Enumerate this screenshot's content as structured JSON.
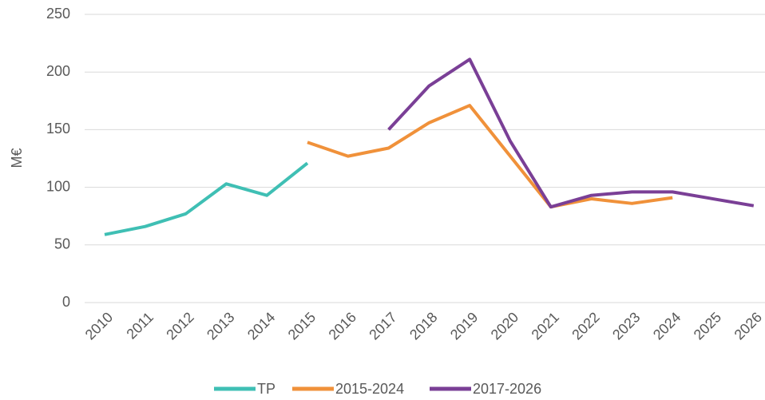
{
  "chart_data": {
    "type": "line",
    "y_label": "M€",
    "categories": [
      "2010",
      "2011",
      "2012",
      "2013",
      "2014",
      "2015",
      "2016",
      "2017",
      "2018",
      "2019",
      "2020",
      "2021",
      "2022",
      "2023",
      "2024",
      "2025",
      "2026"
    ],
    "series": [
      {
        "name": "TP",
        "color": "#3fbfb4",
        "values": [
          59,
          66,
          77,
          103,
          93,
          121,
          null,
          null,
          null,
          null,
          null,
          null,
          null,
          null,
          null,
          null,
          null
        ]
      },
      {
        "name": "2015-2024",
        "color": "#f0913a",
        "values": [
          null,
          null,
          null,
          null,
          null,
          139,
          127,
          134,
          156,
          171,
          127,
          83,
          90,
          86,
          91,
          null,
          null
        ]
      },
      {
        "name": "2017-2026",
        "color": "#7a3f96",
        "values": [
          null,
          null,
          null,
          null,
          null,
          null,
          null,
          150,
          188,
          211,
          140,
          83,
          93,
          96,
          96,
          90,
          84
        ]
      }
    ],
    "ylim": [
      0,
      250
    ],
    "yticks": [
      0,
      50,
      100,
      150,
      200,
      250
    ],
    "grid": true,
    "legend": "bottom"
  }
}
